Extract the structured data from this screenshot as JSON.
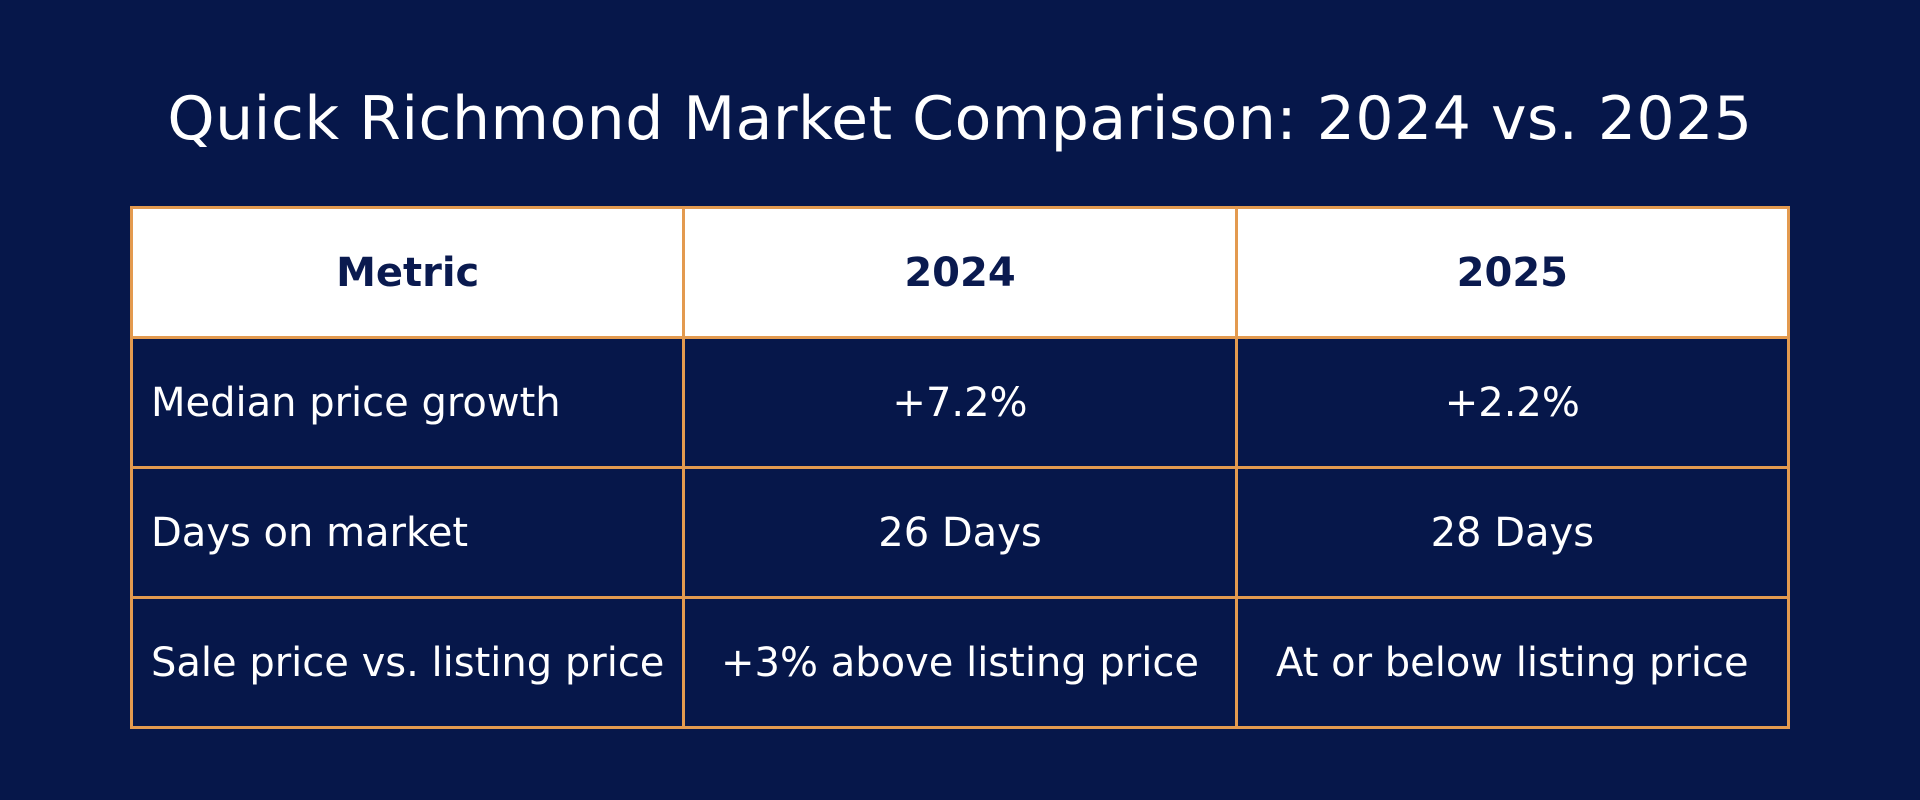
{
  "title": "Quick Richmond Market Comparison: 2024 vs. 2025",
  "table": {
    "headers": [
      "Metric",
      "2024",
      "2025"
    ],
    "rows": [
      [
        "Median price growth",
        "+7.2%",
        "+2.2%"
      ],
      [
        "Days on market",
        "26 Days",
        "28 Days"
      ],
      [
        "Sale price vs. listing price",
        "+3% above listing price",
        "At or below listing price"
      ]
    ]
  },
  "colors": {
    "background": "#06174a",
    "border": "#e39a4f",
    "header_bg": "#ffffff",
    "header_text": "#0a1a4f"
  }
}
